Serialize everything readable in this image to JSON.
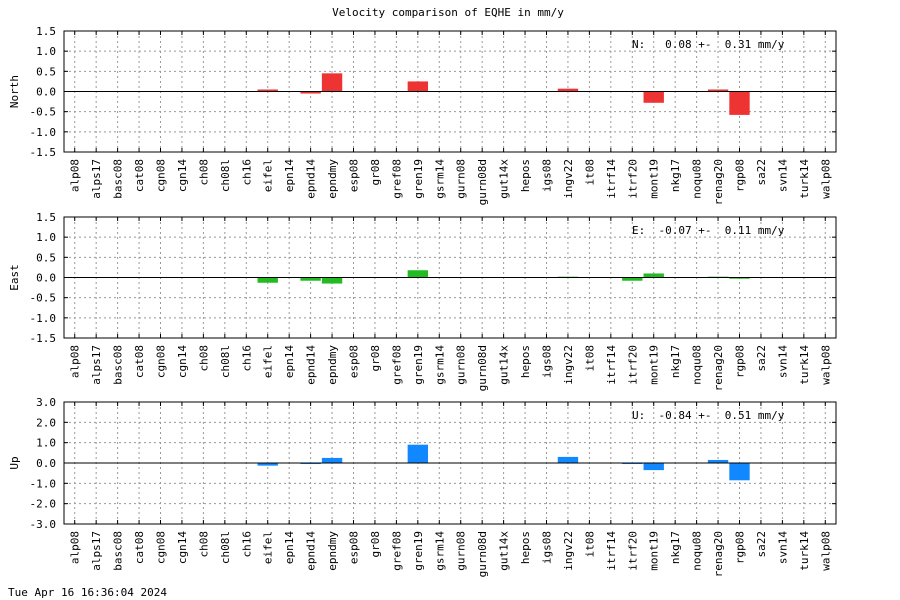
{
  "chart_data": {
    "type": "bar",
    "title": "Velocity comparison of EQHE in mm/y",
    "categories": [
      "alp08",
      "alps17",
      "basc08",
      "cat08",
      "cgn08",
      "cgn14",
      "ch08",
      "ch08l",
      "ch16",
      "eifel",
      "epn14",
      "epnd14",
      "epndmy",
      "esp08",
      "gr08",
      "gref08",
      "gren19",
      "gsrm14",
      "gurn08",
      "gurn08d",
      "gut14x",
      "hepos",
      "igs08",
      "ingv22",
      "it08",
      "itrf14",
      "itrf20",
      "mont19",
      "nkg17",
      "noqu08",
      "renag20",
      "rgp08",
      "sa22",
      "svn14",
      "turk14",
      "walp08"
    ],
    "panels": [
      {
        "ylabel": "North",
        "ylim": [
          -1.5,
          1.5
        ],
        "yticks": [
          "1.5",
          "1.0",
          "0.5",
          "0.0",
          "-0.5",
          "-1.0",
          "-1.5"
        ],
        "annotation": "N:   0.08 +-  0.31 mm/y",
        "color": "#ee3333",
        "values": [
          null,
          null,
          null,
          null,
          null,
          null,
          null,
          null,
          null,
          0.05,
          null,
          -0.05,
          0.45,
          null,
          null,
          null,
          0.25,
          null,
          null,
          null,
          null,
          null,
          null,
          0.07,
          null,
          null,
          null,
          -0.28,
          null,
          null,
          0.05,
          -0.58,
          null,
          null,
          null,
          null
        ]
      },
      {
        "ylabel": "East",
        "ylim": [
          -1.5,
          1.5
        ],
        "yticks": [
          "1.5",
          "1.0",
          "0.5",
          "0.0",
          "-0.5",
          "-1.0",
          "-1.5"
        ],
        "annotation": "E:  -0.07 +-  0.11 mm/y",
        "color": "#22bb22",
        "values": [
          null,
          null,
          null,
          null,
          null,
          null,
          null,
          null,
          null,
          -0.13,
          null,
          -0.08,
          -0.15,
          null,
          null,
          null,
          0.18,
          null,
          null,
          null,
          null,
          null,
          null,
          0.02,
          null,
          null,
          -0.08,
          0.1,
          null,
          null,
          0.02,
          -0.03,
          null,
          null,
          null,
          null
        ]
      },
      {
        "ylabel": "Up",
        "ylim": [
          -3.0,
          3.0
        ],
        "yticks": [
          "3.0",
          "2.0",
          "1.0",
          "0.0",
          "-1.0",
          "-2.0",
          "-3.0"
        ],
        "annotation": "U:  -0.84 +-  0.51 mm/y",
        "color": "#1188ff",
        "values": [
          null,
          null,
          null,
          null,
          null,
          null,
          null,
          null,
          null,
          -0.13,
          null,
          -0.05,
          0.25,
          null,
          null,
          null,
          0.9,
          null,
          null,
          null,
          null,
          null,
          null,
          0.3,
          null,
          null,
          -0.05,
          -0.35,
          null,
          null,
          0.15,
          -0.85,
          null,
          null,
          null,
          null
        ]
      }
    ],
    "grid": true
  },
  "footer": {
    "timestamp": "Tue Apr 16 16:36:04 2024"
  }
}
